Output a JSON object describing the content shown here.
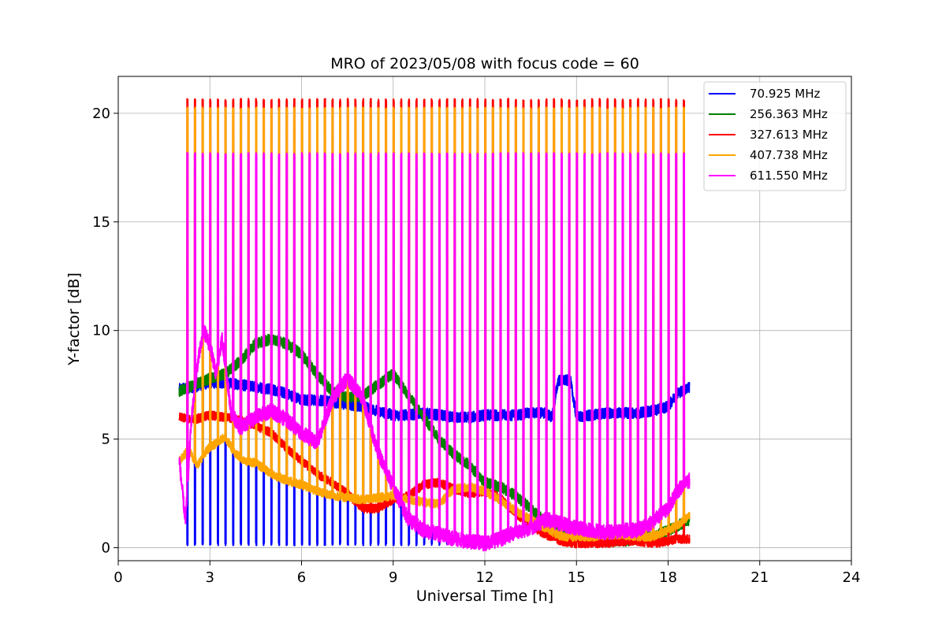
{
  "chart_data": {
    "type": "line",
    "title": "MRO of 2023/05/08 with focus code = 60",
    "xlabel": "Universal Time [h]",
    "ylabel": "Y-factor [dB]",
    "xlim": [
      0,
      24
    ],
    "ylim": [
      -0.6,
      21.7
    ],
    "xticks": [
      0,
      3,
      6,
      9,
      12,
      15,
      18,
      21,
      24
    ],
    "yticks": [
      0,
      5,
      10,
      15,
      20
    ],
    "xtick_labels": [
      "0",
      "3",
      "6",
      "9",
      "12",
      "15",
      "18",
      "21",
      "24"
    ],
    "ytick_labels": [
      "0",
      "5",
      "10",
      "15",
      "20"
    ],
    "grid": true,
    "legend_position": "top-right",
    "calibration_pulses": {
      "start_h": 2.25,
      "end_h": 18.55,
      "period_h": 0.25,
      "peak_levels_db": {
        "327.613 MHz": 20.6,
        "407.738 MHz": 20.2,
        "611.550 MHz": 18.1,
        "70.925 MHz": 5.0
      },
      "note_70_925": "pulses visible only until about 11 h"
    },
    "series": [
      {
        "name": "70.925 MHz",
        "color": "#0000ff",
        "x": [
          2.0,
          2.5,
          3.0,
          3.5,
          4.0,
          4.5,
          5.0,
          5.5,
          6.0,
          6.5,
          7.0,
          7.5,
          8.0,
          8.5,
          9.0,
          9.5,
          10.0,
          10.5,
          11.0,
          11.5,
          12.0,
          12.5,
          13.0,
          13.5,
          14.0,
          14.2,
          14.4,
          14.8,
          15.0,
          15.5,
          16.0,
          16.5,
          17.0,
          17.5,
          18.0,
          18.3,
          18.7
        ],
        "y": [
          7.3,
          7.4,
          7.6,
          7.6,
          7.5,
          7.4,
          7.3,
          7.1,
          6.8,
          6.8,
          6.7,
          6.6,
          6.5,
          6.3,
          6.1,
          6.1,
          6.2,
          6.1,
          6.0,
          6.0,
          6.1,
          6.1,
          6.1,
          6.2,
          6.2,
          6.0,
          7.7,
          7.7,
          6.0,
          6.1,
          6.2,
          6.2,
          6.2,
          6.3,
          6.5,
          7.1,
          7.4
        ]
      },
      {
        "name": "256.363 MHz",
        "color": "#008000",
        "x": [
          2.0,
          2.5,
          3.0,
          3.5,
          4.0,
          4.5,
          5.0,
          5.5,
          6.0,
          6.5,
          7.0,
          7.5,
          8.0,
          8.5,
          9.0,
          9.5,
          10.0,
          10.5,
          11.0,
          11.5,
          12.0,
          12.5,
          13.0,
          13.5,
          14.0,
          14.5,
          15.0,
          15.5,
          16.0,
          16.5,
          17.0,
          17.5,
          18.0,
          18.3,
          18.7
        ],
        "y": [
          7.2,
          7.5,
          7.8,
          8.0,
          8.6,
          9.4,
          9.6,
          9.4,
          8.9,
          8.0,
          7.2,
          6.9,
          7.0,
          7.5,
          8.0,
          7.0,
          6.0,
          5.0,
          4.3,
          3.8,
          3.0,
          2.8,
          2.4,
          1.8,
          1.2,
          0.8,
          0.6,
          0.5,
          0.3,
          0.3,
          0.4,
          0.5,
          0.8,
          1.0,
          1.3
        ]
      },
      {
        "name": "327.613 MHz",
        "color": "#ff0000",
        "x": [
          2.0,
          2.5,
          3.0,
          3.5,
          4.0,
          4.5,
          5.0,
          5.5,
          6.0,
          6.5,
          7.0,
          7.5,
          8.0,
          8.5,
          9.0,
          9.5,
          10.0,
          10.5,
          11.0,
          11.5,
          12.0,
          12.5,
          13.0,
          13.5,
          14.0,
          14.5,
          15.0,
          15.5,
          16.0,
          16.5,
          17.0,
          17.5,
          18.0,
          18.3,
          18.7
        ],
        "y": [
          6.0,
          5.9,
          6.1,
          6.0,
          5.9,
          5.6,
          5.3,
          4.6,
          4.0,
          3.4,
          3.0,
          2.5,
          1.8,
          1.8,
          2.2,
          2.4,
          2.9,
          3.0,
          2.7,
          2.5,
          2.6,
          2.3,
          1.6,
          1.0,
          0.6,
          0.3,
          0.2,
          0.2,
          0.2,
          0.3,
          0.3,
          0.2,
          0.3,
          0.4,
          0.4
        ]
      },
      {
        "name": "407.738 MHz",
        "color": "#ffa500",
        "x": [
          2.0,
          2.3,
          2.6,
          2.9,
          3.2,
          3.5,
          3.8,
          4.1,
          4.5,
          5.0,
          5.5,
          6.0,
          6.5,
          7.0,
          7.5,
          8.0,
          8.5,
          9.0,
          9.5,
          10.0,
          10.5,
          11.0,
          11.5,
          12.0,
          12.5,
          13.0,
          13.5,
          14.0,
          14.5,
          15.0,
          15.5,
          16.0,
          16.5,
          17.0,
          17.5,
          18.0,
          18.3,
          18.7
        ],
        "y": [
          4.0,
          4.5,
          3.8,
          4.5,
          4.8,
          5.1,
          4.4,
          4.0,
          3.9,
          3.4,
          3.1,
          2.9,
          2.6,
          2.4,
          2.3,
          2.2,
          2.3,
          2.4,
          2.2,
          2.1,
          2.0,
          2.7,
          2.8,
          2.6,
          2.2,
          1.7,
          1.3,
          0.9,
          0.5,
          0.5,
          0.5,
          0.6,
          0.6,
          0.5,
          0.5,
          0.8,
          1.0,
          1.5
        ]
      },
      {
        "name": "611.550 MHz",
        "color": "#ff00ff",
        "x": [
          2.0,
          2.2,
          2.4,
          2.6,
          2.8,
          3.0,
          3.2,
          3.4,
          3.7,
          4.0,
          4.5,
          5.0,
          5.5,
          6.0,
          6.5,
          7.0,
          7.5,
          8.0,
          8.5,
          9.0,
          9.5,
          10.0,
          10.5,
          11.0,
          11.5,
          12.0,
          12.5,
          13.0,
          13.5,
          14.0,
          14.5,
          15.0,
          15.5,
          16.0,
          16.5,
          17.0,
          17.5,
          18.0,
          18.3,
          18.7
        ],
        "y": [
          4.0,
          1.2,
          6.0,
          8.5,
          10.0,
          9.3,
          8.0,
          9.6,
          6.2,
          5.5,
          6.0,
          6.3,
          5.9,
          5.3,
          4.8,
          6.8,
          7.8,
          6.9,
          4.4,
          2.8,
          1.3,
          0.8,
          0.6,
          0.4,
          0.3,
          0.2,
          0.4,
          0.7,
          0.9,
          1.3,
          1.1,
          0.9,
          0.8,
          0.7,
          0.8,
          0.8,
          1.2,
          1.8,
          2.6,
          3.1
        ]
      }
    ]
  }
}
